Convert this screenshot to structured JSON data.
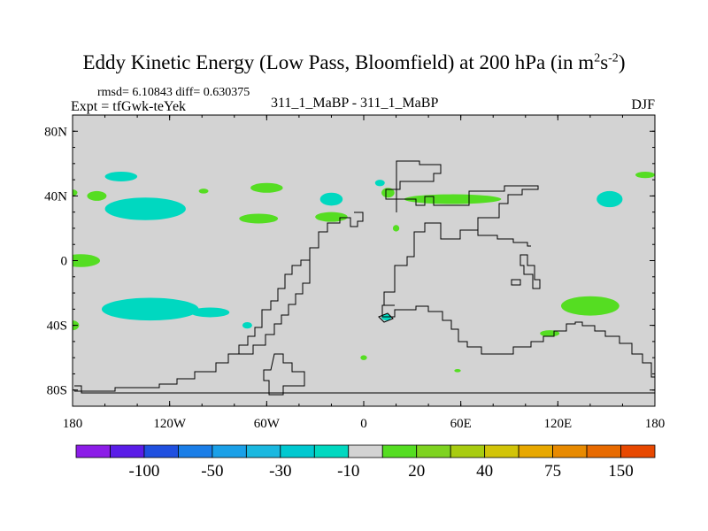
{
  "title": {
    "main": "Eddy Kinetic Energy (Low Pass, Bloomfield) at 200 hPa (in m",
    "sup1": "2",
    "s": "s",
    "sup2": "-2",
    "close": ")"
  },
  "stats": "rmsd= 6.10843 diff= 0.630375",
  "experiment": "Expt = tfGwk-teYek",
  "case_label": "311_1_MaBP - 311_1_MaBP",
  "season": "DJF",
  "colors": {
    "land_gray": "#d3d3d3",
    "neg_light": "#00d8c0",
    "neg_dark": "#00c0d0",
    "pos_light": "#55dd22",
    "coast": "#000000"
  },
  "chart_data": {
    "type": "heatmap",
    "title": "Eddy Kinetic Energy (Low Pass, Bloomfield) at 200 hPa",
    "xlabel": "",
    "ylabel": "",
    "xlim": [
      -180,
      180
    ],
    "ylim": [
      -90,
      90
    ],
    "x_ticks": [
      -180,
      -120,
      -60,
      0,
      60,
      120,
      180
    ],
    "x_tick_labels": [
      "180",
      "120W",
      "60W",
      "0",
      "60E",
      "120E",
      "180"
    ],
    "y_ticks": [
      80,
      40,
      0,
      -40,
      -80
    ],
    "y_tick_labels": [
      "80N",
      "40N",
      "0",
      "40S",
      "80S"
    ],
    "colorbar": {
      "colors": [
        "#8c1de8",
        "#5a1de8",
        "#2050e0",
        "#1a7ee8",
        "#1aa0e8",
        "#1ab8e0",
        "#00c8d0",
        "#00d8c0",
        "#d3d3d3",
        "#55dd22",
        "#7ed320",
        "#a8cc10",
        "#d2c408",
        "#e8a800",
        "#e88a00",
        "#e86a00",
        "#e84800"
      ],
      "labels": [
        "-100",
        "-50",
        "-30",
        "-10",
        "20",
        "40",
        "75",
        "150"
      ]
    },
    "regions": [
      {
        "name": "n-pacific-west",
        "lon": -150,
        "lat": 52,
        "rlon": 10,
        "rlat": 3,
        "sign": "neg"
      },
      {
        "name": "n-pacific-green",
        "lon": -165,
        "lat": 40,
        "rlon": 6,
        "rlat": 3,
        "sign": "pos"
      },
      {
        "name": "n-pacific-cyan",
        "lon": -135,
        "lat": 32,
        "rlon": 25,
        "rlat": 7,
        "sign": "neg"
      },
      {
        "name": "n-pacific-small",
        "lon": -99,
        "lat": 43,
        "rlon": 3,
        "rlat": 1.5,
        "sign": "pos"
      },
      {
        "name": "n-america-green",
        "lon": -60,
        "lat": 45,
        "rlon": 10,
        "rlat": 3,
        "sign": "pos"
      },
      {
        "name": "us-green",
        "lon": -65,
        "lat": 26,
        "rlon": 12,
        "rlat": 3,
        "sign": "pos"
      },
      {
        "name": "n-atlantic-cyan",
        "lon": -20,
        "lat": 38,
        "rlon": 7,
        "rlat": 4,
        "sign": "neg"
      },
      {
        "name": "atlantic-green",
        "lon": -20,
        "lat": 27,
        "rlon": 10,
        "rlat": 3,
        "sign": "pos"
      },
      {
        "name": "europe-green",
        "lon": 15,
        "lat": 42,
        "rlon": 4,
        "rlat": 3,
        "sign": "pos"
      },
      {
        "name": "europe-cyan",
        "lon": 10,
        "lat": 48,
        "rlon": 3,
        "rlat": 2,
        "sign": "neg"
      },
      {
        "name": "asia-jet",
        "lon": 55,
        "lat": 38,
        "rlon": 30,
        "rlat": 3,
        "sign": "pos"
      },
      {
        "name": "atlantic-small",
        "lon": 20,
        "lat": 20,
        "rlon": 2,
        "rlat": 2,
        "sign": "pos"
      },
      {
        "name": "e-pacific-green",
        "lon": 174,
        "lat": 53,
        "rlon": 6,
        "rlat": 2,
        "sign": "pos"
      },
      {
        "name": "e-pacific-cyan",
        "lon": 152,
        "lat": 38,
        "rlon": 8,
        "rlat": 5,
        "sign": "neg"
      },
      {
        "name": "n-america-sm",
        "lon": -180,
        "lat": 42,
        "rlon": 3,
        "rlat": 2,
        "sign": "pos"
      },
      {
        "name": "tropics-green",
        "lon": -175,
        "lat": 0,
        "rlon": 12,
        "rlat": 4,
        "sign": "pos"
      },
      {
        "name": "s-pacific-cyan",
        "lon": -132,
        "lat": -30,
        "rlon": 30,
        "rlat": 7,
        "sign": "neg"
      },
      {
        "name": "s-pacific-east",
        "lon": -95,
        "lat": -32,
        "rlon": 12,
        "rlat": 3,
        "sign": "neg"
      },
      {
        "name": "s-pacific-sm",
        "lon": -72,
        "lat": -40,
        "rlon": 3,
        "rlat": 2,
        "sign": "neg"
      },
      {
        "name": "s-pacific-edge",
        "lon": -180,
        "lat": -40,
        "rlon": 4,
        "rlat": 3,
        "sign": "pos"
      },
      {
        "name": "s-atlantic-sm",
        "lon": 14,
        "lat": -35,
        "rlon": 3,
        "rlat": 2,
        "sign": "neg"
      },
      {
        "name": "s-indian-green",
        "lon": 140,
        "lat": -28,
        "rlon": 18,
        "rlat": 6,
        "sign": "pos"
      },
      {
        "name": "s-indian-sm",
        "lon": 115,
        "lat": -45,
        "rlon": 6,
        "rlat": 2,
        "sign": "pos"
      },
      {
        "name": "s-atlantic-dot",
        "lon": 0,
        "lat": -60,
        "rlon": 2,
        "rlat": 1.5,
        "sign": "pos"
      },
      {
        "name": "s-ocean-dot",
        "lon": 58,
        "lat": -68,
        "rlon": 2,
        "rlat": 1,
        "sign": "pos"
      }
    ]
  }
}
